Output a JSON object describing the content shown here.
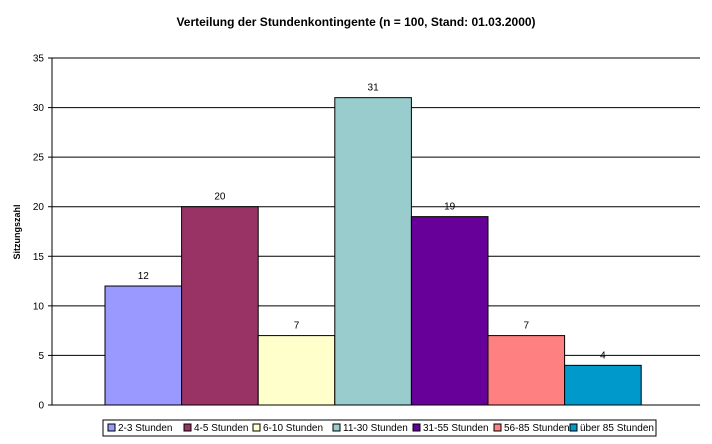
{
  "chart_data": {
    "type": "bar",
    "title": "Verteilung der Stundenkontingente (n = 100, Stand: 01.03.2000)",
    "ylabel": "Sitzungszahl",
    "xlabel": "",
    "ylim": [
      0,
      35
    ],
    "yticks": [
      0,
      5,
      10,
      15,
      20,
      25,
      30,
      35
    ],
    "grid": true,
    "legend_position": "bottom",
    "categories": [
      "2-3 Stunden",
      "4-5 Stunden",
      "6-10 Stunden",
      "11-30 Stunden",
      "31-55 Stunden",
      "56-85 Stunden",
      "über 85 Stunden"
    ],
    "values": [
      12,
      20,
      7,
      31,
      19,
      7,
      4
    ],
    "colors": [
      "#9999ff",
      "#993366",
      "#ffffcc",
      "#99cccc",
      "#660099",
      "#ff8080",
      "#0099cc"
    ],
    "plot_background": "#ffffff"
  }
}
